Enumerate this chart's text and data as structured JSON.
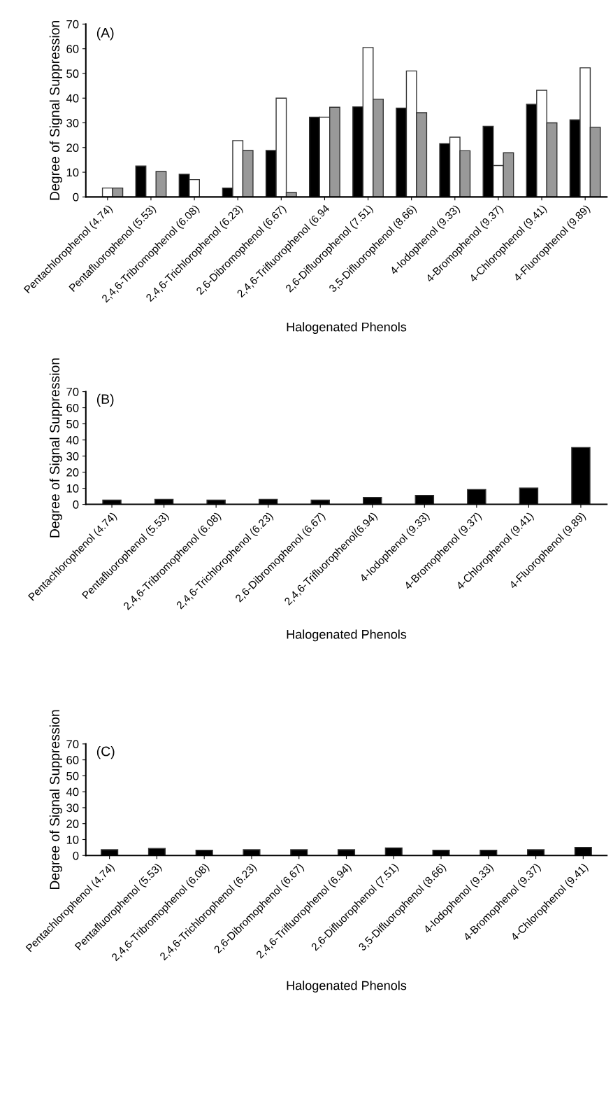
{
  "chart_data": [
    {
      "type": "bar",
      "categories": [
        "Pentachlorophenol (4.74)",
        "Pentafluorophenol (5.53)",
        "2,4,6-Tribromophenol (6.08)",
        "2,4,6-Trichlorophenol (6.23)",
        "2,6-Dibromophenol (6.67)",
        "2,4,6-Trifluorophenol (6.94",
        "2,6-Difluorophenol (7.51)",
        "3,5-Difluorophenol (8.66)",
        "4-Iodophenol (9.33)",
        "4-Bromophenol (9.37)",
        "4-Chlorophenol (9.41)",
        "4-Fluorophenol (9.89)"
      ],
      "series": [
        {
          "color": "#000000",
          "values": [
            null,
            12.5,
            9.2,
            3.6,
            18.8,
            32.3,
            36.5,
            36.0,
            21.6,
            28.6,
            37.5,
            31.2
          ]
        },
        {
          "color": "#ffffff",
          "values": [
            3.6,
            null,
            7.0,
            22.8,
            40.0,
            32.3,
            60.5,
            51.0,
            24.2,
            12.7,
            43.2,
            52.3
          ]
        },
        {
          "color": "#999999",
          "values": [
            3.6,
            10.3,
            null,
            18.8,
            1.8,
            36.3,
            39.6,
            34.1,
            18.7,
            17.9,
            30.0,
            28.2
          ]
        }
      ],
      "xlabel": "Halogenated Phenols",
      "ylabel": "Degree of Signal Suppression",
      "annotations": [
        "(A)"
      ],
      "ylim": [
        0,
        70
      ],
      "yticks": [
        0,
        10,
        20,
        30,
        40,
        50,
        60,
        70
      ]
    },
    {
      "type": "bar",
      "categories": [
        "Pentachlorophenol (4.74)",
        "Pentafluorophenol (5.53)",
        "2,4,6-Tribromophenol (6.08)",
        "2,4,6-Trichlorophenol (6.23)",
        "2,6-Dibromophenol (6.67)",
        "2,4,6-Trifluorophenol(6.94)",
        "4-Iodophenol (9.33)",
        "4-Bromophenol (9.37)",
        "4-Chlorophenol (9.41)",
        "4-Fluorophenol (9.89)"
      ],
      "values": [
        2.6,
        3.1,
        2.6,
        3.1,
        2.6,
        4.3,
        5.6,
        9.2,
        10.1,
        35.3
      ],
      "color": "#000000",
      "xlabel": "Halogenated Phenols",
      "ylabel": "Degree of Signal Suppression",
      "annotations": [
        "(B)"
      ],
      "ylim": [
        0,
        70
      ],
      "yticks": [
        0,
        10,
        20,
        30,
        40,
        50,
        60,
        70
      ]
    },
    {
      "type": "bar",
      "categories": [
        "Pentachlorophenol (4.74)",
        "Pentafluorophenol (5.53)",
        "2,4,6-Tribromophenol (6.08)",
        "2,4,6-Trichlorophenol (6.23)",
        "2,6-Dibromophenol (6.67)",
        "2,4,6-Trifluorophenol (6.94)",
        "2,6-Difluorophenol (7.51)",
        "3,5-Difluorophenol (8.66)",
        "4-Iodophenol (9.33)",
        "4-Bromophenol (9.37)",
        "4-Chlorophenol (9.41)"
      ],
      "values": [
        3.6,
        4.4,
        3.3,
        3.6,
        3.6,
        3.6,
        4.8,
        3.3,
        3.3,
        3.6,
        5.1
      ],
      "color": "#000000",
      "xlabel": "Halogenated Phenols",
      "ylabel": "Degree of Signal Suppression",
      "annotations": [
        "(C)"
      ],
      "ylim": [
        0,
        70
      ],
      "yticks": [
        0,
        10,
        20,
        30,
        40,
        50,
        60,
        70
      ]
    }
  ]
}
